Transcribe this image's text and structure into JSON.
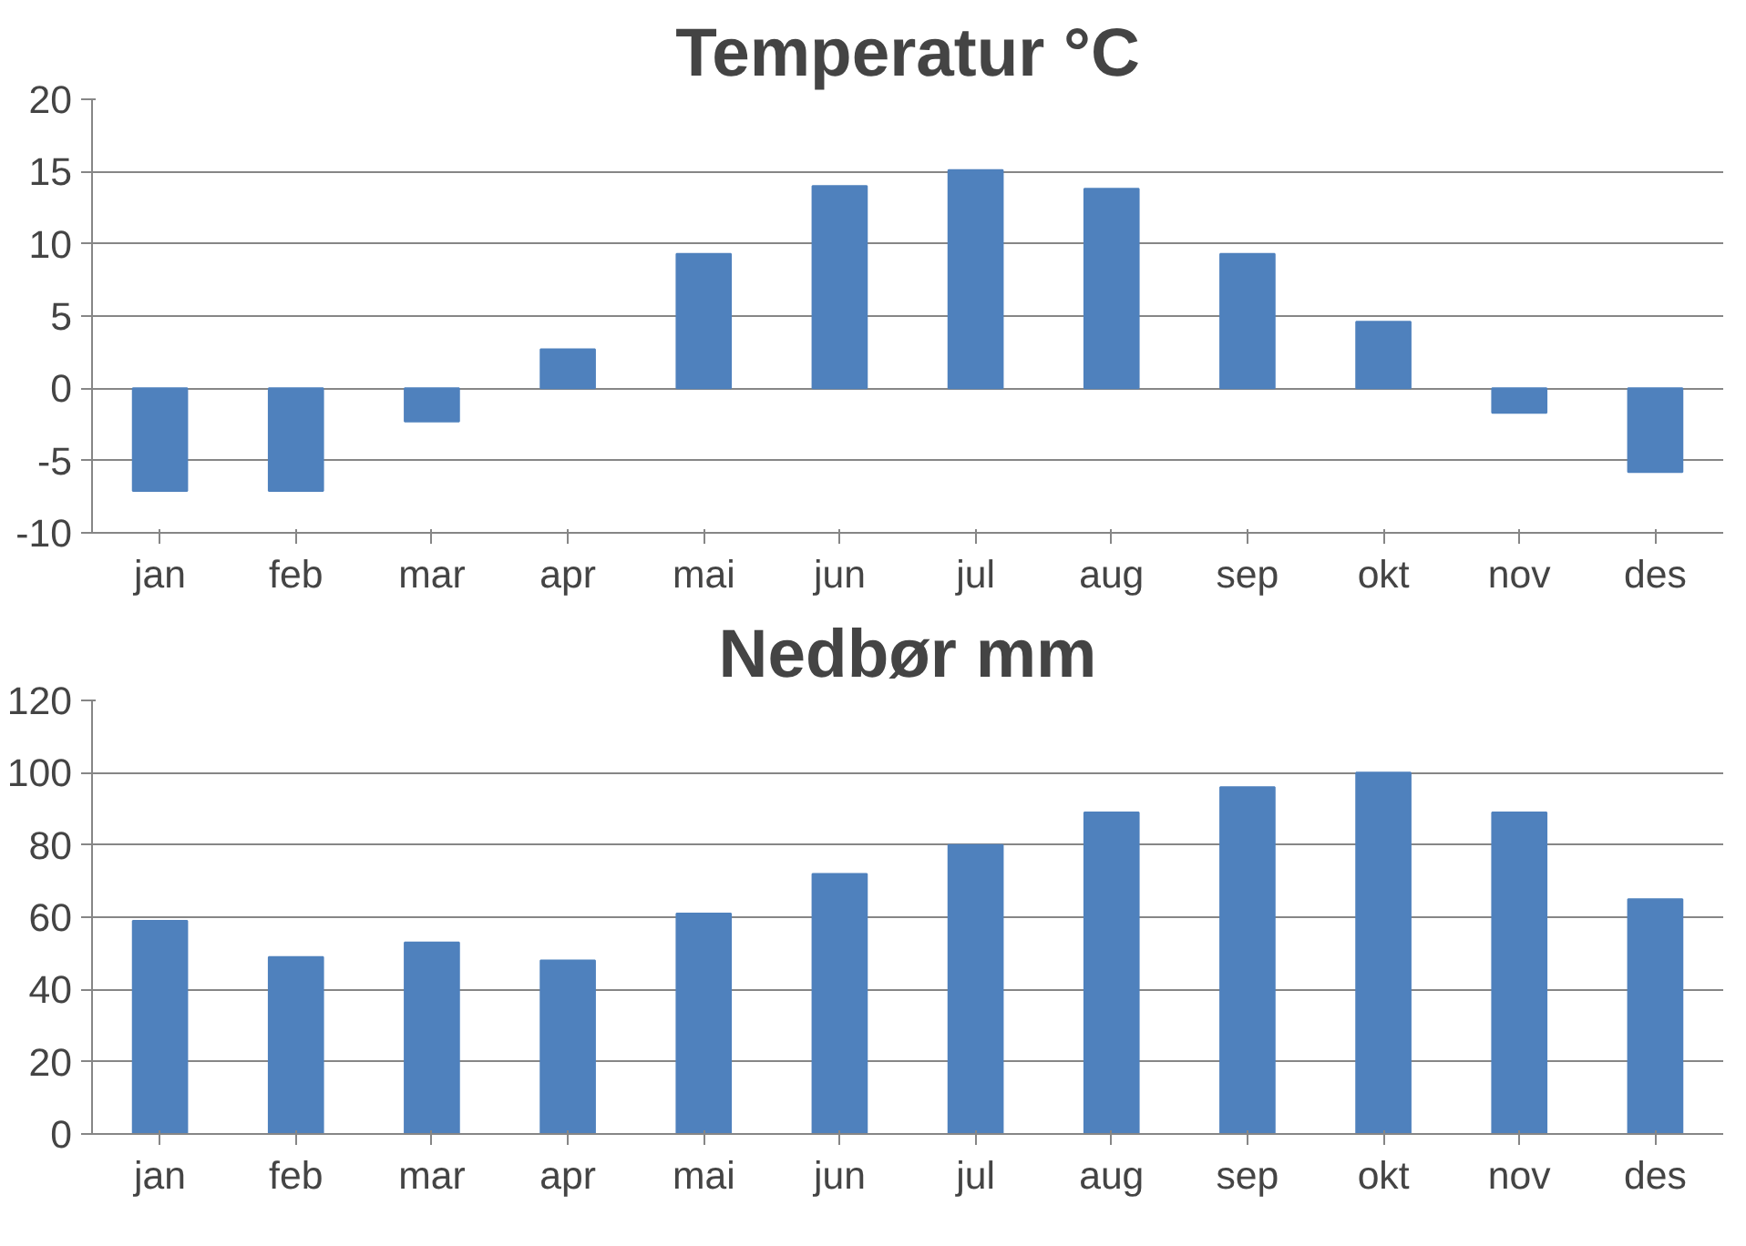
{
  "chart_data": [
    {
      "type": "bar",
      "title": "Temperatur °C",
      "categories": [
        "jan",
        "feb",
        "mar",
        "apr",
        "mai",
        "jun",
        "jul",
        "aug",
        "sep",
        "okt",
        "nov",
        "des"
      ],
      "values": [
        -7.1,
        -7.1,
        -2.3,
        2.7,
        9.3,
        14,
        15.1,
        13.8,
        9.3,
        4.6,
        -1.7,
        -5.8
      ],
      "color": "#4f81bd",
      "ylim": [
        -10,
        20
      ],
      "yticks": [
        -10,
        -5,
        0,
        5,
        10,
        15,
        20
      ],
      "grid": "y"
    },
    {
      "type": "bar",
      "title": "Nedbør mm",
      "categories": [
        "jan",
        "feb",
        "mar",
        "apr",
        "mai",
        "jun",
        "jul",
        "aug",
        "sep",
        "okt",
        "nov",
        "des"
      ],
      "values": [
        59,
        49,
        53,
        48,
        61,
        72,
        80,
        89,
        96,
        100,
        89,
        65
      ],
      "color": "#4f81bd",
      "ylim": [
        0,
        120
      ],
      "yticks": [
        0,
        20,
        40,
        60,
        80,
        100,
        120
      ],
      "grid": "y"
    }
  ]
}
